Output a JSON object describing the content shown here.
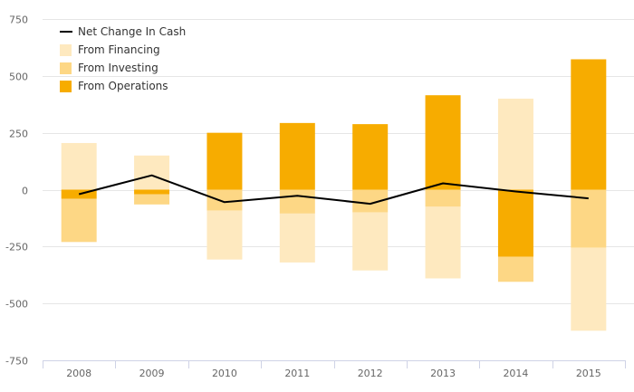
{
  "chart_data": {
    "type": "bar",
    "stacked": true,
    "categories": [
      "2008",
      "2009",
      "2010",
      "2011",
      "2012",
      "2013",
      "2014",
      "2015"
    ],
    "ylim": [
      -750,
      750
    ],
    "yticks": [
      -750,
      -500,
      -250,
      0,
      250,
      500,
      750
    ],
    "ytick_labels": [
      "-750",
      "-500",
      "-250",
      "0",
      "250",
      "500",
      "750"
    ],
    "grid": true,
    "legend_position": "top-left",
    "series": [
      {
        "name": "From Operations",
        "type": "bar",
        "color": "#f7ac00",
        "values": [
          -40,
          -20,
          250,
          293,
          288,
          415,
          -295,
          573
        ]
      },
      {
        "name": "From Investing",
        "type": "bar",
        "color": "#fdd785",
        "values": [
          -190,
          -45,
          -92,
          -105,
          -100,
          -75,
          -110,
          -255
        ]
      },
      {
        "name": "From Financing",
        "type": "bar",
        "color": "#fee9bf",
        "values": [
          205,
          150,
          -215,
          -215,
          -255,
          -315,
          400,
          -365
        ]
      },
      {
        "name": "Net Change In Cash",
        "type": "line",
        "color": "#000000",
        "values": [
          -20,
          63,
          -55,
          -27,
          -62,
          28,
          -8,
          -38
        ]
      }
    ],
    "legend": [
      {
        "label": "Net Change In Cash",
        "marker": "line",
        "color": "#000000"
      },
      {
        "label": "From Financing",
        "marker": "square",
        "color": "#fee9bf"
      },
      {
        "label": "From Investing",
        "marker": "square",
        "color": "#fdd785"
      },
      {
        "label": "From Operations",
        "marker": "square",
        "color": "#f7ac00"
      }
    ]
  }
}
